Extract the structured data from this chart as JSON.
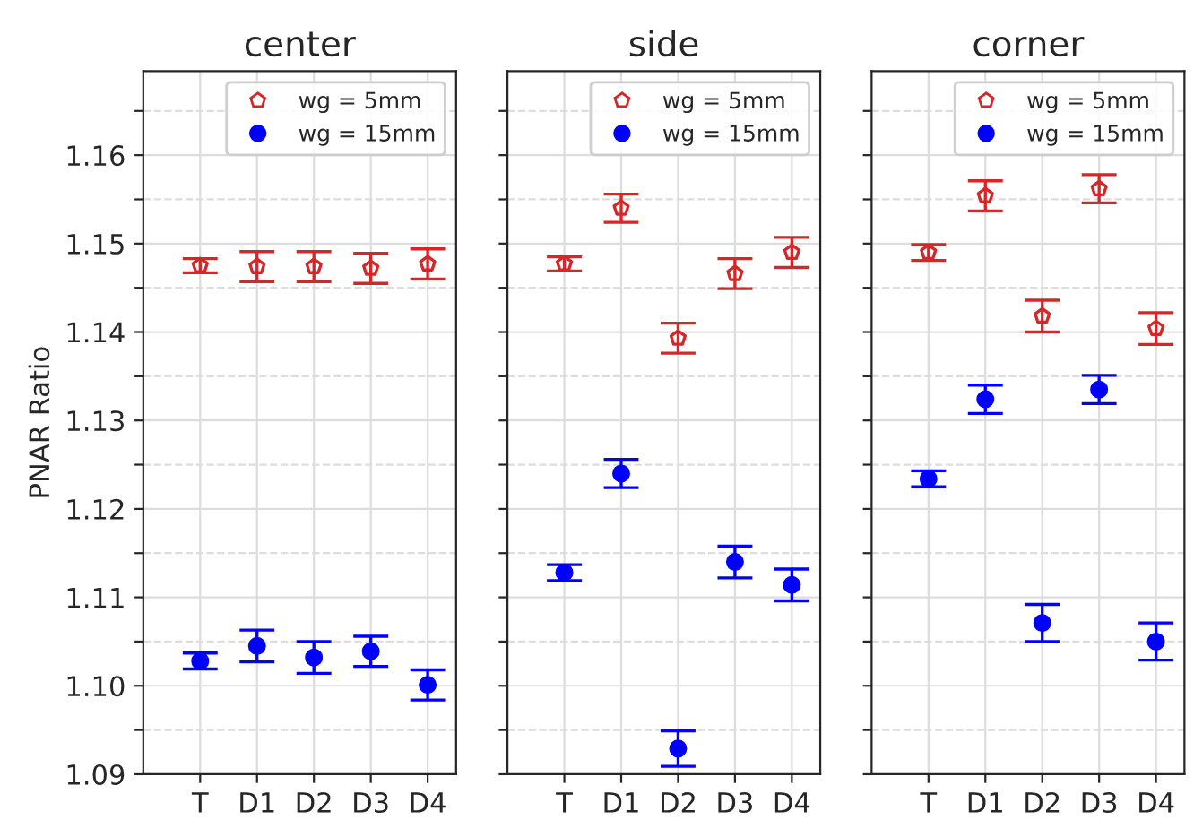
{
  "chart_data": [
    {
      "type": "scatter",
      "title": "center",
      "ylabel": "PNAR Ratio",
      "categories": [
        "T",
        "D1",
        "D2",
        "D3",
        "D4"
      ],
      "ylim": [
        1.09,
        1.1695
      ],
      "yticks": [
        1.09,
        {
          "value": 1.095,
          "label": null
        },
        "1.10",
        {
          "value": 1.105,
          "label": null
        },
        1.11,
        {
          "value": 1.115,
          "label": null
        },
        1.12,
        {
          "value": 1.125,
          "label": null
        },
        1.13,
        {
          "value": 1.135,
          "label": null
        },
        1.14,
        {
          "value": 1.145,
          "label": null
        },
        1.15,
        {
          "value": 1.155,
          "label": null
        },
        1.16,
        {
          "value": 1.165,
          "label": null
        }
      ],
      "grid": true,
      "legend": "top right",
      "series": [
        {
          "name": "wg = 5mm",
          "color": "#d62728",
          "values": [
            1.1475,
            1.1474,
            1.1474,
            1.1472,
            1.1477
          ],
          "errors": [
            0.0008,
            0.0017,
            0.0017,
            0.0017,
            0.0017
          ]
        },
        {
          "name": "wg = 15mm",
          "color": "#0000ff",
          "marker": "circle",
          "values": [
            1.1028,
            1.1045,
            1.1032,
            1.1039,
            1.1001
          ],
          "errors": [
            0.0009,
            0.0018,
            0.0018,
            0.0017,
            0.0017
          ]
        }
      ]
    },
    {
      "type": "scatter",
      "title": "side",
      "categories": [
        "T",
        "D1",
        "D2",
        "D3",
        "D4"
      ],
      "ylim": [
        1.09,
        1.1695
      ],
      "yticks": [
        1.09,
        {
          "value": 1.095,
          "label": null
        },
        1.1,
        {
          "value": 1.105,
          "label": null
        },
        1.11,
        {
          "value": 1.115,
          "label": null
        },
        1.12,
        {
          "value": 1.125,
          "label": null
        },
        1.13,
        {
          "value": 1.135,
          "label": null
        },
        1.14,
        {
          "value": 1.145,
          "label": null
        },
        1.15,
        {
          "value": 1.155,
          "label": null
        },
        1.16,
        {
          "value": 1.165,
          "label": null
        }
      ],
      "tick_labels": "x",
      "grid": true,
      "legend": "top right",
      "series": [
        {
          "name": "wg = 5mm",
          "color": "#d62728",
          "values": [
            1.1477,
            1.154,
            1.1393,
            1.1466,
            1.149
          ],
          "errors": [
            0.0008,
            0.0016,
            0.0017,
            0.0017,
            0.0017
          ]
        },
        {
          "name": "wg = 15mm",
          "color": "#0000ff",
          "marker": "circle",
          "values": [
            1.1128,
            1.124,
            1.0929,
            1.114,
            1.1114
          ],
          "errors": [
            0.0009,
            0.0016,
            0.002,
            0.0018,
            0.0018
          ]
        }
      ]
    },
    {
      "type": "scatter",
      "title": "corner",
      "categories": [
        "T",
        "D1",
        "D2",
        "D3",
        "D4"
      ],
      "ylim": [
        1.09,
        1.1695
      ],
      "yticks": [
        1.09,
        {
          "value": 1.095,
          "label": null
        },
        1.1,
        {
          "value": 1.105,
          "label": null
        },
        1.11,
        {
          "value": 1.115,
          "label": null
        },
        1.12,
        {
          "value": 1.125,
          "label": null
        },
        1.13,
        {
          "value": 1.135,
          "label": null
        },
        1.14,
        {
          "value": 1.145,
          "label": null
        },
        1.15,
        {
          "value": 1.155,
          "label": null
        },
        1.16,
        {
          "value": 1.165,
          "label": null
        }
      ],
      "tick_labels": "x",
      "grid": true,
      "legend": "top right",
      "series": [
        {
          "name": "wg = 5mm",
          "color": "#d62728",
          "values": [
            1.149,
            1.1554,
            1.1418,
            1.1562,
            1.1404
          ],
          "errors": [
            0.0009,
            0.0017,
            0.0018,
            0.0016,
            0.0018
          ]
        },
        {
          "name": "wg = 15mm",
          "color": "#0000ff",
          "marker": "circle",
          "values": [
            1.1234,
            1.1324,
            1.1071,
            1.1335,
            1.105
          ],
          "errors": [
            0.0009,
            0.0016,
            0.0021,
            0.0016,
            0.0021
          ]
        }
      ]
    }
  ]
}
